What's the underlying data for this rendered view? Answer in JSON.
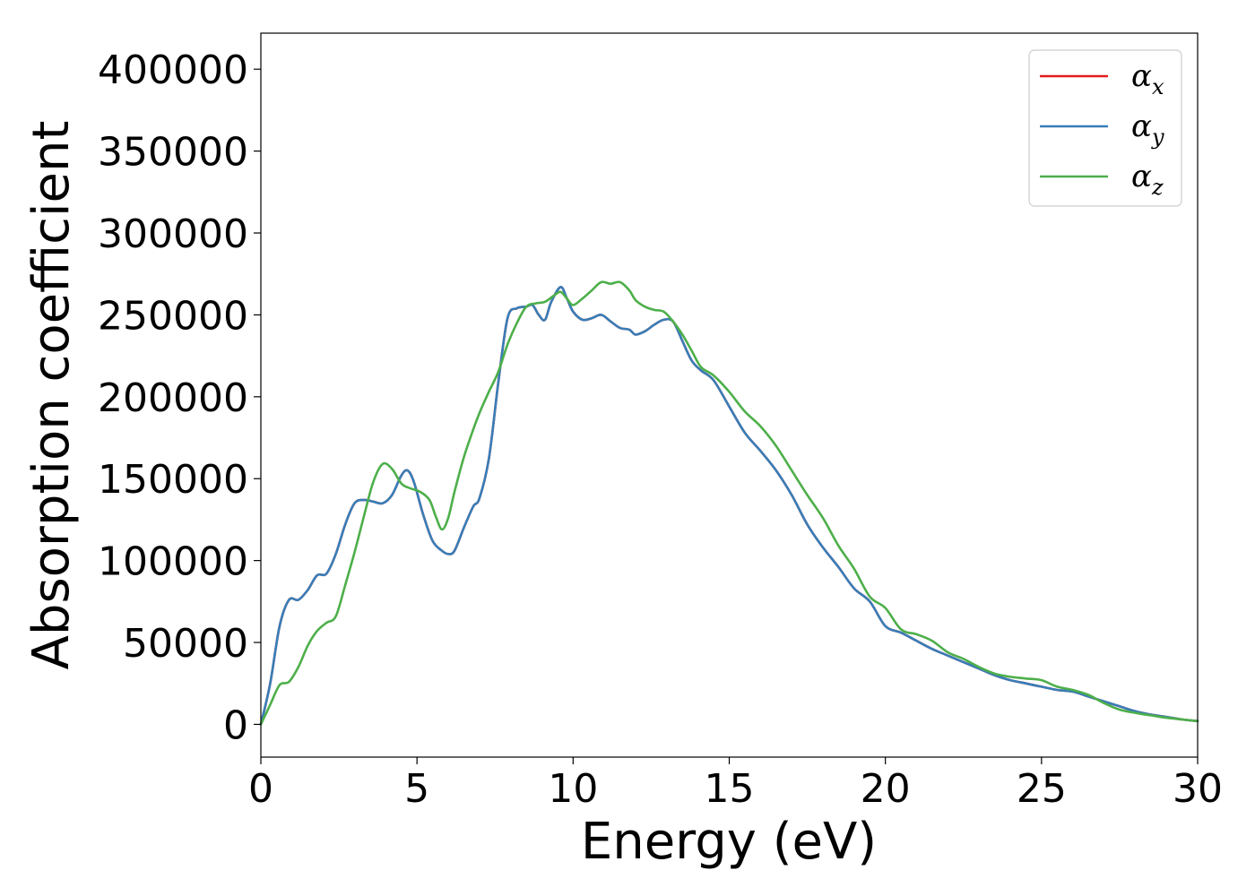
{
  "chart_data": {
    "type": "line",
    "title": "",
    "xlabel": "Energy (eV)",
    "ylabel": "Absorption coefficient",
    "xlim": [
      0,
      30
    ],
    "ylim": [
      -20000,
      422000
    ],
    "xticks": [
      0,
      5,
      10,
      15,
      20,
      25,
      30
    ],
    "yticks": [
      0,
      50000,
      100000,
      150000,
      200000,
      250000,
      300000,
      350000,
      400000
    ],
    "xtick_labels": [
      "0",
      "5",
      "10",
      "15",
      "20",
      "25",
      "30"
    ],
    "ytick_labels": [
      "0",
      "50000",
      "100000",
      "150000",
      "200000",
      "250000",
      "300000",
      "350000",
      "400000"
    ],
    "grid": false,
    "legend_position": "top-right",
    "series": [
      {
        "name": "α_x",
        "legend_symbol": "α",
        "legend_sub": "x",
        "color": "#e41a1c",
        "x": [
          0,
          0.3,
          0.6,
          0.9,
          1.2,
          1.5,
          1.8,
          2.1,
          2.4,
          2.7,
          3.0,
          3.3,
          3.6,
          3.9,
          4.2,
          4.5,
          4.7,
          4.9,
          5.2,
          5.5,
          5.8,
          6.0,
          6.2,
          6.5,
          6.8,
          7.0,
          7.3,
          7.6,
          7.9,
          8.2,
          8.5,
          8.7,
          8.9,
          9.1,
          9.3,
          9.6,
          9.8,
          10.0,
          10.3,
          10.6,
          10.9,
          11.2,
          11.5,
          11.8,
          12.0,
          12.3,
          12.6,
          12.9,
          13.2,
          13.5,
          13.8,
          14.1,
          14.5,
          15.0,
          15.5,
          16.0,
          16.5,
          17.0,
          17.5,
          18.0,
          18.5,
          19.0,
          19.5,
          20.0,
          20.5,
          21.0,
          21.5,
          22.0,
          22.5,
          23.0,
          23.5,
          24.0,
          24.5,
          25.0,
          25.5,
          26.0,
          26.5,
          27.0,
          27.5,
          28.0,
          28.5,
          29.0,
          29.5,
          30.0
        ],
        "y": [
          0,
          25000,
          60000,
          76000,
          76000,
          82000,
          91000,
          92000,
          104000,
          122000,
          135000,
          137000,
          136000,
          135000,
          140000,
          152000,
          155000,
          148000,
          128000,
          112000,
          106000,
          104000,
          106000,
          120000,
          133000,
          138000,
          162000,
          208000,
          248000,
          254000,
          255000,
          256000,
          250000,
          247000,
          258000,
          267000,
          260000,
          252000,
          247000,
          248000,
          250000,
          246000,
          242000,
          241000,
          238000,
          240000,
          244000,
          247000,
          246000,
          234000,
          222000,
          216000,
          210000,
          194000,
          178000,
          167000,
          155000,
          140000,
          122000,
          108000,
          96000,
          83000,
          75000,
          60000,
          56000,
          51000,
          46000,
          42000,
          38000,
          34000,
          30000,
          27000,
          25000,
          23000,
          21000,
          20000,
          17000,
          14000,
          11000,
          8000,
          6000,
          4500,
          3000,
          2000
        ]
      },
      {
        "name": "α_y",
        "legend_symbol": "α",
        "legend_sub": "y",
        "color": "#377eb8",
        "x": [
          0,
          0.3,
          0.6,
          0.9,
          1.2,
          1.5,
          1.8,
          2.1,
          2.4,
          2.7,
          3.0,
          3.3,
          3.6,
          3.9,
          4.2,
          4.5,
          4.7,
          4.9,
          5.2,
          5.5,
          5.8,
          6.0,
          6.2,
          6.5,
          6.8,
          7.0,
          7.3,
          7.6,
          7.9,
          8.2,
          8.5,
          8.7,
          8.9,
          9.1,
          9.3,
          9.6,
          9.8,
          10.0,
          10.3,
          10.6,
          10.9,
          11.2,
          11.5,
          11.8,
          12.0,
          12.3,
          12.6,
          12.9,
          13.2,
          13.5,
          13.8,
          14.1,
          14.5,
          15.0,
          15.5,
          16.0,
          16.5,
          17.0,
          17.5,
          18.0,
          18.5,
          19.0,
          19.5,
          20.0,
          20.5,
          21.0,
          21.5,
          22.0,
          22.5,
          23.0,
          23.5,
          24.0,
          24.5,
          25.0,
          25.5,
          26.0,
          26.5,
          27.0,
          27.5,
          28.0,
          28.5,
          29.0,
          29.5,
          30.0
        ],
        "y": [
          0,
          25000,
          60000,
          76000,
          76000,
          82000,
          91000,
          92000,
          104000,
          122000,
          135000,
          137000,
          136000,
          135000,
          140000,
          152000,
          155000,
          148000,
          128000,
          112000,
          106000,
          104000,
          106000,
          120000,
          133000,
          138000,
          162000,
          208000,
          248000,
          254000,
          255000,
          256000,
          250000,
          247000,
          258000,
          267000,
          260000,
          252000,
          247000,
          248000,
          250000,
          246000,
          242000,
          241000,
          238000,
          240000,
          244000,
          247000,
          246000,
          234000,
          222000,
          216000,
          210000,
          194000,
          178000,
          167000,
          155000,
          140000,
          122000,
          108000,
          96000,
          83000,
          75000,
          60000,
          56000,
          51000,
          46000,
          42000,
          38000,
          34000,
          30000,
          27000,
          25000,
          23000,
          21000,
          20000,
          17000,
          14000,
          11000,
          8000,
          6000,
          4500,
          3000,
          2000
        ]
      },
      {
        "name": "α_z",
        "legend_symbol": "α",
        "legend_sub": "z",
        "color": "#4daf4a",
        "x": [
          0,
          0.3,
          0.6,
          0.9,
          1.2,
          1.5,
          1.8,
          2.1,
          2.4,
          2.7,
          3.0,
          3.3,
          3.6,
          3.9,
          4.2,
          4.5,
          4.8,
          5.1,
          5.4,
          5.6,
          5.8,
          6.0,
          6.2,
          6.5,
          6.8,
          7.0,
          7.3,
          7.6,
          7.9,
          8.2,
          8.5,
          8.8,
          9.1,
          9.4,
          9.6,
          9.8,
          10.0,
          10.3,
          10.6,
          10.9,
          11.2,
          11.5,
          11.8,
          12.0,
          12.3,
          12.6,
          12.9,
          13.2,
          13.5,
          13.8,
          14.1,
          14.5,
          15.0,
          15.5,
          16.0,
          16.5,
          17.0,
          17.5,
          18.0,
          18.5,
          19.0,
          19.5,
          20.0,
          20.5,
          21.0,
          21.5,
          22.0,
          22.5,
          23.0,
          23.5,
          24.0,
          24.5,
          25.0,
          25.5,
          26.0,
          26.5,
          27.0,
          27.5,
          28.0,
          28.5,
          29.0,
          29.5,
          30.0
        ],
        "y": [
          0,
          12000,
          24000,
          26000,
          35000,
          48000,
          57000,
          62000,
          66000,
          85000,
          105000,
          127000,
          148000,
          159000,
          156000,
          147000,
          144000,
          142000,
          137000,
          127000,
          119000,
          126000,
          142000,
          163000,
          180000,
          190000,
          203000,
          215000,
          232000,
          245000,
          255000,
          257000,
          258000,
          262000,
          264000,
          260000,
          256000,
          260000,
          265000,
          270000,
          269000,
          270000,
          265000,
          259000,
          255000,
          253000,
          252000,
          246000,
          238000,
          228000,
          218000,
          213000,
          203000,
          191000,
          182000,
          170000,
          155000,
          140000,
          126000,
          109000,
          95000,
          78000,
          71000,
          58000,
          55000,
          51000,
          44000,
          40000,
          35000,
          31000,
          29000,
          28000,
          27000,
          23000,
          21000,
          18000,
          13000,
          9000,
          7000,
          5500,
          4000,
          3000,
          2000
        ]
      }
    ]
  }
}
